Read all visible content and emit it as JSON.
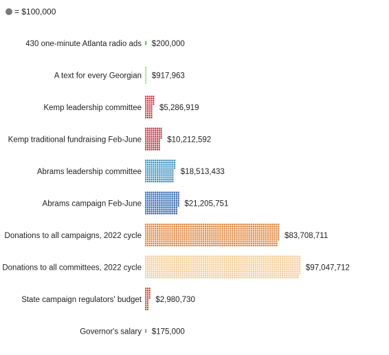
{
  "legend": {
    "label": "= $100,000",
    "unit_value": 100000,
    "dot_color": "#7a7a7a"
  },
  "chart_data": {
    "type": "bar",
    "encoding": "dot-matrix (each dot = $100,000)",
    "title": "",
    "xlabel": "",
    "ylabel": "",
    "categories": [
      "430 one-minute Atlanta radio ads",
      "A text for every Georgian",
      "Kemp leadership committee",
      "Kemp traditional fundraising Feb-June",
      "Abrams leadership committee",
      "Abrams campaign Feb-June",
      "Donations to all campaigns, 2022 cycle",
      "Donations to all committees, 2022 cycle",
      "State campaign regulators' budget",
      "Governor's salary"
    ],
    "values": [
      200000,
      917963,
      5286919,
      10212592,
      18513433,
      21205751,
      83708711,
      97047712,
      2980730,
      175000
    ],
    "value_labels": [
      "$200,000",
      "$917,963",
      "$5,286,919",
      "$10,212,592",
      "$18,513,433",
      "$21,205,751",
      "$83,708,711",
      "$97,047,712",
      "$2,980,730",
      "$175,000"
    ],
    "colors": [
      "#2a9d3a",
      "#9fd58a",
      "#c8283c",
      "#b8263a",
      "#2d86b8",
      "#1f5aa6",
      "#e07a2a",
      "#f6c48c",
      "#b5452b",
      "#6e6e6e"
    ],
    "grid": false,
    "legend_position": "top-left"
  }
}
